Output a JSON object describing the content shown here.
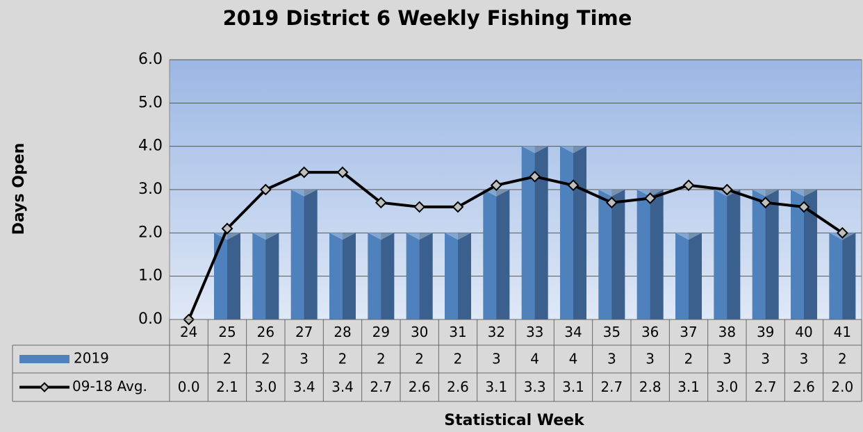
{
  "chart_data": {
    "type": "bar_line",
    "title": "2019 District 6 Weekly Fishing Time",
    "x_label": "Statistical Week",
    "y_label": "Days Open",
    "categories": [
      "24",
      "25",
      "26",
      "27",
      "28",
      "29",
      "30",
      "31",
      "32",
      "33",
      "34",
      "35",
      "36",
      "37",
      "38",
      "39",
      "40",
      "41"
    ],
    "series": [
      {
        "name": "2019",
        "type": "bar",
        "color": "#4f81bd",
        "values": [
          null,
          2,
          2,
          3,
          2,
          2,
          2,
          2,
          3,
          4,
          4,
          3,
          3,
          2,
          3,
          3,
          3,
          2
        ]
      },
      {
        "name": "09-18 Avg.",
        "type": "line",
        "color": "#000000",
        "values": [
          0.0,
          2.1,
          3.0,
          3.4,
          3.4,
          2.7,
          2.6,
          2.6,
          3.1,
          3.3,
          3.1,
          2.7,
          2.8,
          3.1,
          3.0,
          2.7,
          2.6,
          2.0
        ],
        "value_labels": [
          "0.0",
          "2.1",
          "3.0",
          "3.4",
          "3.4",
          "2.7",
          "2.6",
          "2.6",
          "3.1",
          "3.3",
          "3.1",
          "2.7",
          "2.8",
          "3.1",
          "3.0",
          "2.7",
          "2.6",
          "2.0"
        ]
      }
    ],
    "ylim": [
      0,
      6
    ],
    "yticks": [
      {
        "value": 0,
        "label": "0.0"
      },
      {
        "value": 1,
        "label": "1.0"
      },
      {
        "value": 2,
        "label": "2.0"
      },
      {
        "value": 3,
        "label": "3.0"
      },
      {
        "value": 4,
        "label": "4.0"
      },
      {
        "value": 5,
        "label": "5.0"
      },
      {
        "value": 6,
        "label": "6.0"
      }
    ],
    "grid": true,
    "data_table": true
  }
}
